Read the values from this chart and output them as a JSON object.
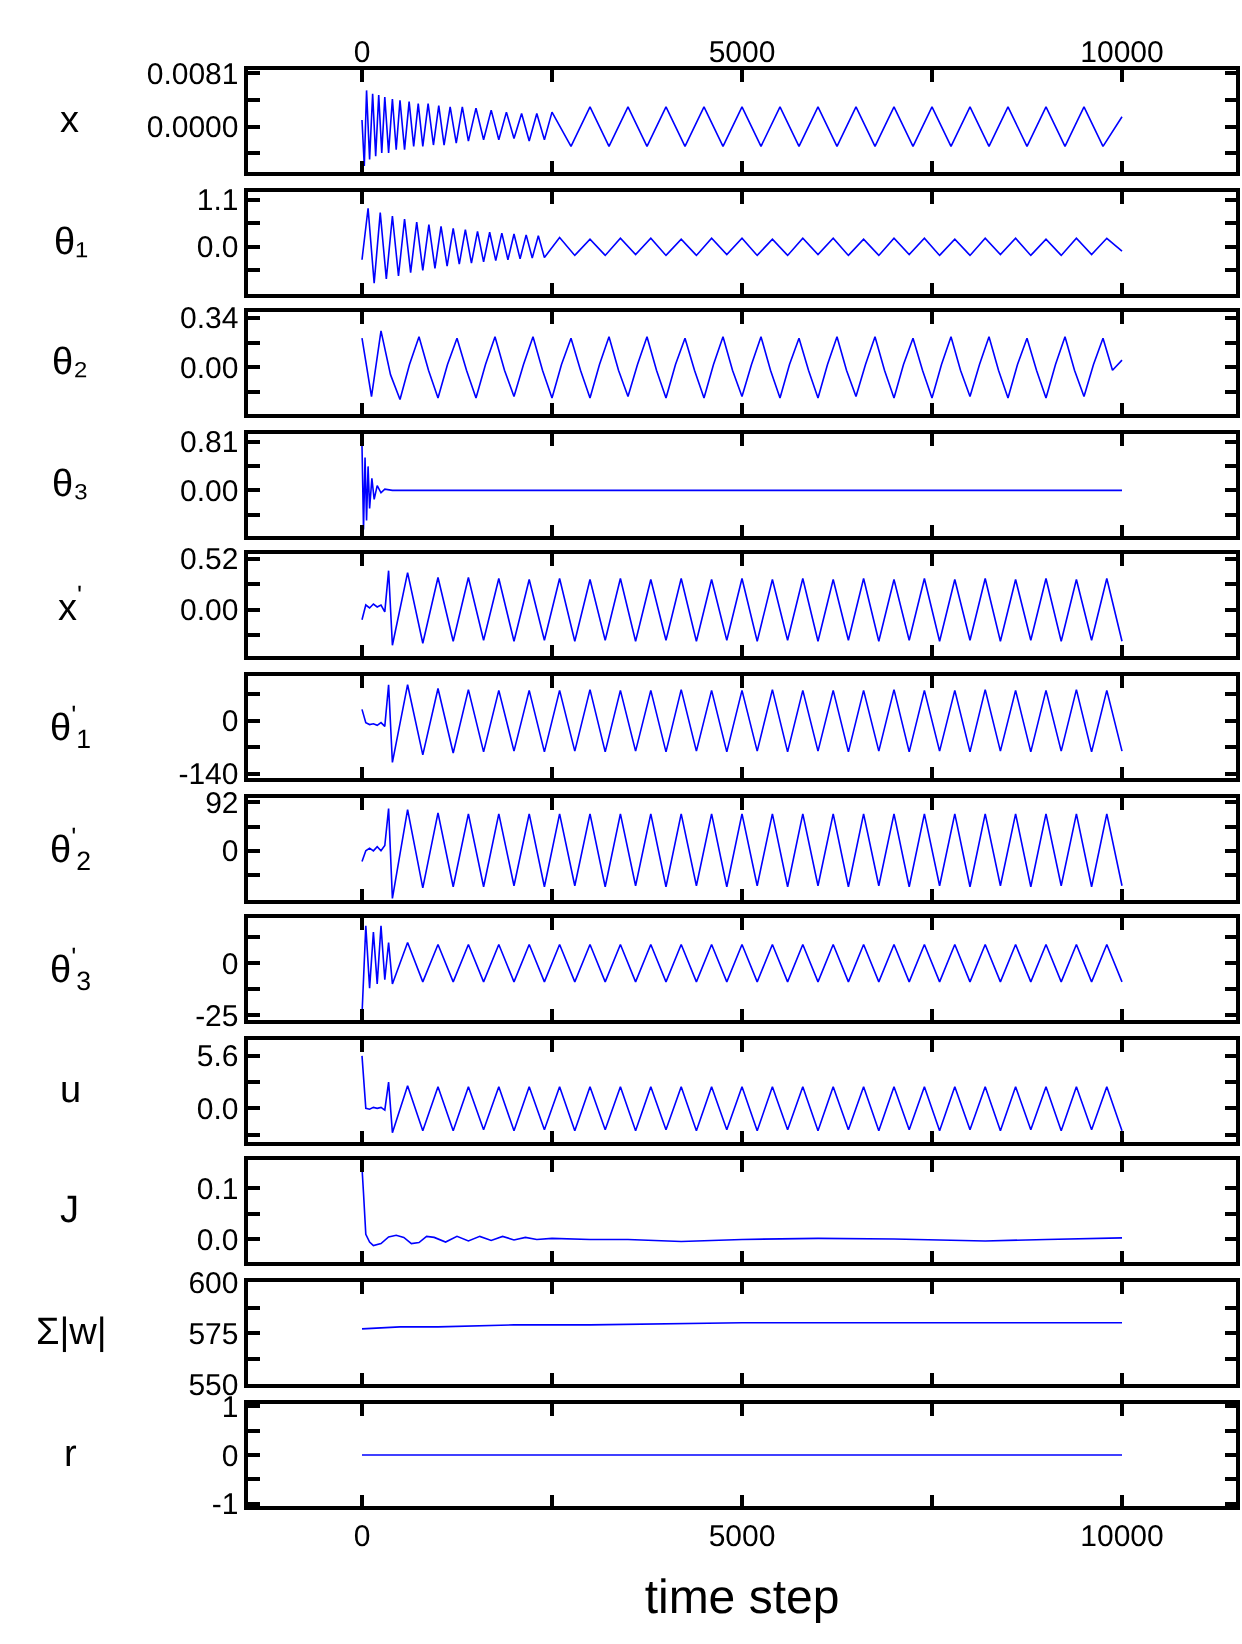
{
  "chart_data": [
    {
      "type": "line",
      "ylabel": "x",
      "xlim": [
        -1500,
        11500
      ],
      "xticks": [
        {
          "value": 0,
          "label": null
        },
        {
          "value": 2500,
          "label": null
        },
        {
          "value": 5000,
          "label": null
        },
        {
          "value": 7500,
          "label": null
        },
        {
          "value": 10000,
          "label": null
        }
      ],
      "x2lim": [
        -1500,
        11500
      ],
      "x2ticks": [
        0,
        5000,
        10000
      ],
      "tick_labels": "y",
      "ylim": [
        -0.0069,
        0.0086
      ],
      "yticks": [
        {
          "value": -0.00405,
          "label": null
        },
        {
          "value": 0,
          "label": "0.0000"
        },
        {
          "value": 0.00405,
          "label": null
        },
        0.0081
      ],
      "grid": false,
      "x": [
        0,
        30,
        60,
        100,
        140,
        180,
        220,
        260,
        300,
        350,
        400,
        450,
        500,
        560,
        620,
        680,
        740,
        800,
        870,
        940,
        1010,
        1080,
        1160,
        1240,
        1320,
        1400,
        1500,
        1600,
        1700,
        1800,
        1900,
        2000,
        2100,
        2200,
        2300,
        2400,
        2500,
        2750,
        3000,
        3250,
        3500,
        3750,
        4000,
        4250,
        4500,
        4750,
        5000,
        5250,
        5500,
        5750,
        6000,
        6250,
        6500,
        6750,
        7000,
        7250,
        7500,
        7750,
        8000,
        8250,
        8500,
        8750,
        9000,
        9250,
        9500,
        9750,
        10000
      ],
      "series": [
        {
          "color": "#0000ff",
          "values": [
            0.001,
            -0.006,
            0.0055,
            -0.005,
            0.005,
            -0.0045,
            0.0048,
            -0.004,
            0.0045,
            -0.004,
            0.0042,
            -0.0035,
            0.004,
            -0.0035,
            0.0038,
            -0.003,
            0.0035,
            -0.003,
            0.0035,
            -0.0028,
            0.0032,
            -0.0028,
            0.003,
            -0.0025,
            0.003,
            -0.0022,
            0.0028,
            -0.002,
            0.0025,
            -0.002,
            0.0022,
            -0.0018,
            0.002,
            -0.0022,
            0.002,
            -0.002,
            0.0022,
            -0.003,
            0.003,
            -0.003,
            0.003,
            -0.003,
            0.003,
            -0.003,
            0.003,
            -0.003,
            0.003,
            -0.003,
            0.003,
            -0.003,
            0.003,
            -0.003,
            0.003,
            -0.003,
            0.003,
            -0.003,
            0.003,
            -0.003,
            0.003,
            -0.003,
            0.003,
            -0.003,
            0.003,
            -0.003,
            0.003,
            -0.003,
            0.0015
          ]
        }
      ]
    },
    {
      "type": "line",
      "ylabel": "θ₁",
      "xlim": [
        -1500,
        11500
      ],
      "xticks": [
        {
          "value": 0,
          "label": null
        },
        {
          "value": 2500,
          "label": null
        },
        {
          "value": 5000,
          "label": null
        },
        {
          "value": 7500,
          "label": null
        },
        {
          "value": 10000,
          "label": null
        }
      ],
      "tick_labels": "y",
      "ylim": [
        -1.1,
        1.28
      ],
      "yticks": [
        {
          "value": -0.55,
          "label": null
        },
        {
          "value": 0,
          "label": "0.0"
        },
        {
          "value": 0.55,
          "label": null
        },
        1.1
      ],
      "grid": false,
      "x": [
        0,
        80,
        160,
        240,
        320,
        400,
        480,
        560,
        640,
        720,
        800,
        880,
        960,
        1040,
        1120,
        1200,
        1280,
        1360,
        1440,
        1520,
        1600,
        1680,
        1760,
        1840,
        1920,
        2000,
        2080,
        2160,
        2240,
        2320,
        2400,
        2600,
        2800,
        3000,
        3200,
        3400,
        3600,
        3800,
        4000,
        4200,
        4400,
        4600,
        4800,
        5000,
        5200,
        5400,
        5600,
        5800,
        6000,
        6200,
        6400,
        6600,
        6800,
        7000,
        7200,
        7400,
        7600,
        7800,
        8000,
        8200,
        8400,
        8600,
        8800,
        9000,
        9200,
        9400,
        9600,
        9800,
        10000
      ],
      "series": [
        {
          "color": "#0000ff",
          "values": [
            -0.3,
            0.9,
            -0.85,
            0.8,
            -0.75,
            0.72,
            -0.68,
            0.65,
            -0.6,
            0.58,
            -0.55,
            0.52,
            -0.5,
            0.48,
            -0.45,
            0.43,
            -0.4,
            0.4,
            -0.38,
            0.36,
            -0.35,
            0.34,
            -0.32,
            0.32,
            -0.3,
            0.3,
            -0.28,
            0.28,
            -0.26,
            0.26,
            -0.25,
            0.22,
            -0.2,
            0.18,
            -0.2,
            0.2,
            -0.18,
            0.2,
            -0.2,
            0.18,
            -0.2,
            0.2,
            -0.18,
            0.2,
            -0.2,
            0.18,
            -0.2,
            0.2,
            -0.18,
            0.2,
            -0.2,
            0.18,
            -0.2,
            0.2,
            -0.18,
            0.2,
            -0.2,
            0.18,
            -0.2,
            0.2,
            -0.18,
            0.2,
            -0.2,
            0.18,
            -0.2,
            0.2,
            -0.18,
            0.2,
            -0.1
          ]
        }
      ]
    },
    {
      "type": "line",
      "ylabel": "θ₂",
      "xlim": [
        -1500,
        11500
      ],
      "xticks": [
        {
          "value": 0,
          "label": null
        },
        {
          "value": 2500,
          "label": null
        },
        {
          "value": 5000,
          "label": null
        },
        {
          "value": 7500,
          "label": null
        },
        {
          "value": 10000,
          "label": null
        }
      ],
      "tick_labels": "y",
      "ylim": [
        -0.32,
        0.38
      ],
      "yticks": [
        {
          "value": -0.17,
          "label": null
        },
        {
          "value": 0,
          "label": "0.00"
        },
        {
          "value": 0.17,
          "label": null
        },
        0.34
      ],
      "grid": false,
      "x": [
        0,
        125,
        250,
        375,
        500,
        625,
        750,
        875,
        1000,
        1125,
        1250,
        1375,
        1500,
        1625,
        1750,
        1875,
        2000,
        2125,
        2250,
        2375,
        2500,
        2625,
        2750,
        2875,
        3000,
        3125,
        3250,
        3375,
        3500,
        3625,
        3750,
        3875,
        4000,
        4125,
        4250,
        4375,
        4500,
        4625,
        4750,
        4875,
        5000,
        5125,
        5250,
        5375,
        5500,
        5625,
        5750,
        5875,
        6000,
        6125,
        6250,
        6375,
        6500,
        6625,
        6750,
        6875,
        7000,
        7125,
        7250,
        7375,
        7500,
        7625,
        7750,
        7875,
        8000,
        8125,
        8250,
        8375,
        8500,
        8625,
        8750,
        8875,
        9000,
        9125,
        9250,
        9375,
        9500,
        9625,
        9750,
        9875,
        10000
      ],
      "series": [
        {
          "color": "#0000ff",
          "values": [
            0.2,
            -0.2,
            0.25,
            -0.05,
            -0.22,
            0.02,
            0.21,
            -0.02,
            -0.21,
            0.02,
            0.2,
            -0.02,
            -0.21,
            0.02,
            0.21,
            -0.02,
            -0.2,
            0.02,
            0.21,
            -0.02,
            -0.21,
            0.02,
            0.2,
            -0.02,
            -0.21,
            0.02,
            0.21,
            -0.02,
            -0.2,
            0.02,
            0.21,
            -0.02,
            -0.21,
            0.02,
            0.2,
            -0.02,
            -0.21,
            0.02,
            0.21,
            -0.02,
            -0.2,
            0.02,
            0.21,
            -0.02,
            -0.21,
            0.02,
            0.2,
            -0.02,
            -0.21,
            0.02,
            0.21,
            -0.02,
            -0.2,
            0.02,
            0.21,
            -0.02,
            -0.21,
            0.02,
            0.2,
            -0.02,
            -0.21,
            0.02,
            0.21,
            -0.02,
            -0.2,
            0.02,
            0.21,
            -0.02,
            -0.21,
            0.02,
            0.2,
            -0.02,
            -0.21,
            0.02,
            0.21,
            -0.02,
            -0.2,
            0.02,
            0.2,
            -0.02,
            0.05
          ]
        }
      ]
    },
    {
      "type": "line",
      "ylabel": "θ₃",
      "xlim": [
        -1500,
        11500
      ],
      "xticks": [
        {
          "value": 0,
          "label": null
        },
        {
          "value": 2500,
          "label": null
        },
        {
          "value": 5000,
          "label": null
        },
        {
          "value": 7500,
          "label": null
        },
        {
          "value": 10000,
          "label": null
        }
      ],
      "tick_labels": "y",
      "ylim": [
        -0.76,
        0.94
      ],
      "yticks": [
        {
          "value": -0.405,
          "label": null
        },
        {
          "value": 0,
          "label": "0.00"
        },
        {
          "value": 0.405,
          "label": null
        },
        0.81
      ],
      "grid": false,
      "x": [
        0,
        20,
        40,
        60,
        80,
        100,
        130,
        160,
        200,
        250,
        300,
        400,
        10000
      ],
      "series": [
        {
          "color": "#0000ff",
          "values": [
            0.75,
            -0.65,
            0.55,
            -0.5,
            0.4,
            -0.3,
            0.2,
            -0.15,
            0.08,
            -0.04,
            0.02,
            0,
            0
          ]
        }
      ]
    },
    {
      "type": "line",
      "ylabel": "x$^{'}$",
      "xlim": [
        -1500,
        11500
      ],
      "xticks": [
        {
          "value": 0,
          "label": null
        },
        {
          "value": 2500,
          "label": null
        },
        {
          "value": 5000,
          "label": null
        },
        {
          "value": 7500,
          "label": null
        },
        {
          "value": 10000,
          "label": null
        }
      ],
      "tick_labels": "y",
      "ylim": [
        -0.47,
        0.57
      ],
      "yticks": [
        {
          "value": -0.26,
          "label": null
        },
        {
          "value": 0,
          "label": "0.00"
        },
        {
          "value": 0.26,
          "label": null
        },
        0.52
      ],
      "grid": false,
      "x": [
        0,
        50,
        100,
        150,
        200,
        250,
        300,
        350,
        400,
        600,
        800,
        1000,
        1200,
        1400,
        1600,
        1800,
        2000,
        2200,
        2400,
        2600,
        2800,
        3000,
        3200,
        3400,
        3600,
        3800,
        4000,
        4200,
        4400,
        4600,
        4800,
        5000,
        5200,
        5400,
        5600,
        5800,
        6000,
        6200,
        6400,
        6600,
        6800,
        7000,
        7200,
        7400,
        7600,
        7800,
        8000,
        8200,
        8400,
        8600,
        8800,
        9000,
        9200,
        9400,
        9600,
        9800,
        10000
      ],
      "series": [
        {
          "color": "#0000ff",
          "values": [
            -0.1,
            0.05,
            0.02,
            0.06,
            0.03,
            0.05,
            -0.02,
            0.4,
            -0.36,
            0.38,
            -0.34,
            0.33,
            -0.32,
            0.33,
            -0.31,
            0.32,
            -0.32,
            0.31,
            -0.31,
            0.32,
            -0.32,
            0.31,
            -0.31,
            0.32,
            -0.32,
            0.31,
            -0.31,
            0.32,
            -0.32,
            0.31,
            -0.31,
            0.32,
            -0.32,
            0.31,
            -0.31,
            0.32,
            -0.32,
            0.31,
            -0.31,
            0.32,
            -0.32,
            0.31,
            -0.31,
            0.32,
            -0.32,
            0.31,
            -0.31,
            0.32,
            -0.32,
            0.31,
            -0.31,
            0.32,
            -0.32,
            0.31,
            -0.31,
            0.32,
            -0.32
          ]
        }
      ]
    },
    {
      "type": "line",
      "ylabel": "θ$^{'}$$_{1}$",
      "xlim": [
        -1500,
        11500
      ],
      "xticks": [
        {
          "value": 0,
          "label": null
        },
        {
          "value": 2500,
          "label": null
        },
        {
          "value": 5000,
          "label": null
        },
        {
          "value": 7500,
          "label": null
        },
        {
          "value": 10000,
          "label": null
        }
      ],
      "tick_labels": "y",
      "ylim": [
        -151,
        118
      ],
      "yticks": [
        -140,
        {
          "value": -70,
          "label": null
        },
        0,
        {
          "value": 70,
          "label": null
        }
      ],
      "grid": false,
      "x": [
        0,
        50,
        100,
        150,
        200,
        250,
        300,
        350,
        400,
        600,
        800,
        1000,
        1200,
        1400,
        1600,
        1800,
        2000,
        2200,
        2400,
        2600,
        2800,
        3000,
        3200,
        3400,
        3600,
        3800,
        4000,
        4200,
        4400,
        4600,
        4800,
        5000,
        5200,
        5400,
        5600,
        5800,
        6000,
        6200,
        6400,
        6600,
        6800,
        7000,
        7200,
        7400,
        7600,
        7800,
        8000,
        8200,
        8400,
        8600,
        8800,
        9000,
        9200,
        9400,
        9600,
        9800,
        10000
      ],
      "series": [
        {
          "color": "#0000ff",
          "values": [
            30,
            -5,
            -10,
            -8,
            -12,
            -5,
            -15,
            95,
            -110,
            95,
            -90,
            85,
            -85,
            82,
            -82,
            80,
            -80,
            80,
            -82,
            80,
            -80,
            82,
            -82,
            80,
            -80,
            80,
            -82,
            82,
            -80,
            80,
            -82,
            80,
            -80,
            82,
            -82,
            80,
            -80,
            80,
            -82,
            80,
            -80,
            82,
            -82,
            80,
            -80,
            80,
            -82,
            82,
            -80,
            80,
            -82,
            80,
            -80,
            82,
            -82,
            80,
            -80
          ]
        }
      ]
    },
    {
      "type": "line",
      "ylabel": "θ$^{'}$$_{2}$",
      "xlim": [
        -1500,
        11500
      ],
      "xticks": [
        {
          "value": 0,
          "label": null
        },
        {
          "value": 2500,
          "label": null
        },
        {
          "value": 5000,
          "label": null
        },
        {
          "value": 7500,
          "label": null
        },
        {
          "value": 10000,
          "label": null
        }
      ],
      "tick_labels": "y",
      "ylim": [
        -93,
        100
      ],
      "yticks": [
        {
          "value": -46,
          "label": null
        },
        0,
        {
          "value": 46,
          "label": null
        },
        92
      ],
      "grid": false,
      "x": [
        0,
        50,
        100,
        150,
        200,
        250,
        300,
        350,
        400,
        600,
        800,
        1000,
        1200,
        1400,
        1600,
        1800,
        2000,
        2200,
        2400,
        2600,
        2800,
        3000,
        3200,
        3400,
        3600,
        3800,
        4000,
        4200,
        4400,
        4600,
        4800,
        5000,
        5200,
        5400,
        5600,
        5800,
        6000,
        6200,
        6400,
        6600,
        6800,
        7000,
        7200,
        7400,
        7600,
        7800,
        8000,
        8200,
        8400,
        8600,
        8800,
        9000,
        9200,
        9400,
        9600,
        9800,
        10000
      ],
      "series": [
        {
          "color": "#0000ff",
          "values": [
            -20,
            0,
            5,
            0,
            8,
            0,
            10,
            80,
            -90,
            78,
            -70,
            72,
            -68,
            70,
            -68,
            70,
            -66,
            70,
            -68,
            70,
            -66,
            70,
            -68,
            70,
            -66,
            70,
            -68,
            70,
            -66,
            70,
            -68,
            70,
            -66,
            70,
            -68,
            70,
            -66,
            70,
            -68,
            70,
            -66,
            70,
            -68,
            70,
            -66,
            70,
            -68,
            70,
            -66,
            70,
            -68,
            70,
            -66,
            70,
            -68,
            70,
            -66
          ]
        }
      ]
    },
    {
      "type": "line",
      "ylabel": "θ$^{'}$$_{3}$",
      "xlim": [
        -1500,
        11500
      ],
      "xticks": [
        {
          "value": 0,
          "label": null
        },
        {
          "value": 2500,
          "label": null
        },
        {
          "value": 5000,
          "label": null
        },
        {
          "value": 7500,
          "label": null
        },
        {
          "value": 10000,
          "label": null
        }
      ],
      "tick_labels": "y",
      "ylim": [
        -27.4,
        21.8
      ],
      "yticks": [
        -25,
        {
          "value": -12.5,
          "label": null
        },
        0,
        {
          "value": 12.5,
          "label": null
        }
      ],
      "grid": false,
      "x": [
        0,
        50,
        100,
        150,
        200,
        250,
        300,
        350,
        400,
        600,
        800,
        1000,
        1200,
        1400,
        1600,
        1800,
        2000,
        2200,
        2400,
        2600,
        2800,
        3000,
        3200,
        3400,
        3600,
        3800,
        4000,
        4200,
        4400,
        4600,
        4800,
        5000,
        5200,
        5400,
        5600,
        5800,
        6000,
        6200,
        6400,
        6600,
        6800,
        7000,
        7200,
        7400,
        7600,
        7800,
        8000,
        8200,
        8400,
        8600,
        8800,
        9000,
        9200,
        9400,
        9600,
        9800,
        10000
      ],
      "series": [
        {
          "color": "#0000ff",
          "values": [
            -25,
            18,
            -12,
            15,
            -10,
            18,
            -8,
            10,
            -10,
            10,
            -9,
            9,
            -9,
            9,
            -9,
            9,
            -9,
            9,
            -9,
            9,
            -9,
            9,
            -9,
            9,
            -9,
            9,
            -9,
            9,
            -9,
            9,
            -9,
            9,
            -9,
            9,
            -9,
            9,
            -9,
            9,
            -9,
            9,
            -9,
            9,
            -9,
            9,
            -9,
            9,
            -9,
            9,
            -9,
            9,
            -9,
            9,
            -9,
            9,
            -9,
            9,
            -9
          ]
        }
      ]
    },
    {
      "type": "line",
      "ylabel": "u",
      "xlim": [
        -1500,
        11500
      ],
      "xticks": [
        {
          "value": 0,
          "label": null
        },
        {
          "value": 2500,
          "label": null
        },
        {
          "value": 5000,
          "label": null
        },
        {
          "value": 7500,
          "label": null
        },
        {
          "value": 10000,
          "label": null
        }
      ],
      "tick_labels": "y",
      "ylim": [
        -3.6,
        7.3
      ],
      "yticks": [
        {
          "value": -2.8,
          "label": null
        },
        {
          "value": 0,
          "label": "0.0"
        },
        {
          "value": 2.8,
          "label": null
        },
        5.6
      ],
      "grid": false,
      "x": [
        0,
        50,
        100,
        150,
        200,
        250,
        300,
        350,
        400,
        600,
        800,
        1000,
        1200,
        1400,
        1600,
        1800,
        2000,
        2200,
        2400,
        2600,
        2800,
        3000,
        3200,
        3400,
        3600,
        3800,
        4000,
        4200,
        4400,
        4600,
        4800,
        5000,
        5200,
        5400,
        5600,
        5800,
        6000,
        6200,
        6400,
        6600,
        6800,
        7000,
        7200,
        7400,
        7600,
        7800,
        8000,
        8200,
        8400,
        8600,
        8800,
        9000,
        9200,
        9400,
        9600,
        9800,
        10000
      ],
      "series": [
        {
          "color": "#0000ff",
          "values": [
            5.6,
            0,
            -0.1,
            0.1,
            0,
            0.1,
            -0.2,
            2.8,
            -2.6,
            2.4,
            -2.4,
            2.3,
            -2.4,
            2.3,
            -2.3,
            2.3,
            -2.4,
            2.3,
            -2.3,
            2.3,
            -2.4,
            2.3,
            -2.3,
            2.3,
            -2.4,
            2.3,
            -2.3,
            2.3,
            -2.4,
            2.3,
            -2.3,
            2.3,
            -2.4,
            2.3,
            -2.3,
            2.3,
            -2.4,
            2.3,
            -2.3,
            2.3,
            -2.4,
            2.3,
            -2.3,
            2.3,
            -2.4,
            2.3,
            -2.3,
            2.3,
            -2.4,
            2.3,
            -2.3,
            2.3,
            -2.4,
            2.3,
            -2.3,
            2.3,
            -2.4
          ]
        }
      ]
    },
    {
      "type": "line",
      "ylabel": "J",
      "xlim": [
        -1500,
        11500
      ],
      "xticks": [
        {
          "value": 0,
          "label": null
        },
        {
          "value": 2500,
          "label": null
        },
        {
          "value": 5000,
          "label": null
        },
        {
          "value": 7500,
          "label": null
        },
        {
          "value": 10000,
          "label": null
        }
      ],
      "tick_labels": "y",
      "ylim": [
        -0.044,
        0.155
      ],
      "yticks": [
        {
          "value": 0,
          "label": "0.0"
        },
        {
          "value": 0.05,
          "label": null
        },
        0.1
      ],
      "grid": false,
      "x": [
        0,
        20,
        50,
        100,
        150,
        250,
        350,
        450,
        550,
        650,
        750,
        850,
        950,
        1100,
        1250,
        1400,
        1550,
        1700,
        1850,
        2000,
        2150,
        2300,
        2500,
        3000,
        3500,
        4200,
        5000,
        6000,
        7000,
        8200,
        9000,
        10000
      ],
      "series": [
        {
          "color": "#0000ff",
          "values": [
            0.14,
            0.09,
            0.01,
            -0.005,
            -0.012,
            -0.008,
            0.005,
            0.008,
            0.004,
            -0.008,
            -0.006,
            0.006,
            0.004,
            -0.005,
            0.006,
            -0.003,
            0.006,
            -0.002,
            0.006,
            -0.001,
            0.004,
            0,
            0.002,
            0,
            0,
            -0.004,
            0,
            0.002,
            0.001,
            -0.003,
            0,
            0.003
          ]
        }
      ]
    },
    {
      "type": "line",
      "ylabel": "Σ|w|",
      "xlim": [
        -1500,
        11500
      ],
      "xticks": [
        {
          "value": 0,
          "label": null
        },
        {
          "value": 2500,
          "label": null
        },
        {
          "value": 5000,
          "label": null
        },
        {
          "value": 7500,
          "label": null
        },
        {
          "value": 10000,
          "label": null
        }
      ],
      "tick_labels": "y",
      "ylim": [
        550,
        600
      ],
      "yticks": [
        550,
        {
          "value": 562.5,
          "label": null
        },
        575,
        {
          "value": 587.5,
          "label": null
        },
        600
      ],
      "grid": false,
      "x": [
        0,
        500,
        1000,
        2000,
        3000,
        5000,
        7000,
        10000
      ],
      "series": [
        {
          "color": "#0000ff",
          "values": [
            577,
            578,
            578,
            579,
            579,
            580,
            580,
            580
          ]
        }
      ]
    },
    {
      "type": "line",
      "ylabel": "r",
      "xlabel": "time step",
      "xlim": [
        -1500,
        11500
      ],
      "xticks": [
        0,
        {
          "value": 2500,
          "label": null
        },
        5000,
        {
          "value": 7500,
          "label": null
        },
        10000
      ],
      "ylim": [
        -1.05,
        1.05
      ],
      "yticks": [
        -1,
        {
          "value": -0.5,
          "label": null
        },
        0,
        {
          "value": 0.5,
          "label": null
        },
        1
      ],
      "grid": false,
      "x": [
        0,
        10000
      ],
      "series": [
        {
          "color": "#0000ff",
          "values": [
            0,
            0
          ]
        }
      ]
    }
  ]
}
